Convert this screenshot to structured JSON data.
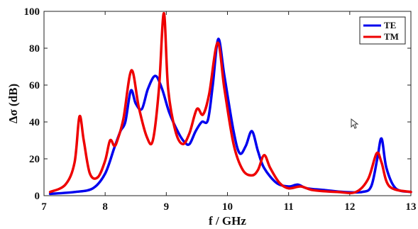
{
  "chart_data": {
    "type": "line",
    "xlabel": "f / GHz",
    "ylabel": "Δσ (dB)",
    "xlim": [
      7,
      13
    ],
    "ylim": [
      0,
      100
    ],
    "xticks": [
      "7",
      "8",
      "9",
      "10",
      "11",
      "12",
      "13"
    ],
    "yticks": [
      "0",
      "20",
      "40",
      "60",
      "80",
      "100"
    ],
    "grid": false,
    "legend_position": "top-right",
    "series": [
      {
        "name": "TE",
        "color": "#0000ee",
        "points": [
          [
            7.1,
            1
          ],
          [
            7.5,
            2
          ],
          [
            7.8,
            4
          ],
          [
            8.0,
            12
          ],
          [
            8.15,
            26
          ],
          [
            8.25,
            35
          ],
          [
            8.33,
            40
          ],
          [
            8.42,
            57
          ],
          [
            8.5,
            50
          ],
          [
            8.6,
            47
          ],
          [
            8.7,
            58
          ],
          [
            8.82,
            65
          ],
          [
            8.93,
            58
          ],
          [
            9.05,
            45
          ],
          [
            9.2,
            34
          ],
          [
            9.3,
            29
          ],
          [
            9.38,
            28
          ],
          [
            9.48,
            35
          ],
          [
            9.58,
            40
          ],
          [
            9.68,
            41
          ],
          [
            9.76,
            60
          ],
          [
            9.85,
            85
          ],
          [
            9.95,
            65
          ],
          [
            10.1,
            35
          ],
          [
            10.2,
            23
          ],
          [
            10.3,
            27
          ],
          [
            10.4,
            35
          ],
          [
            10.5,
            24
          ],
          [
            10.6,
            15
          ],
          [
            10.8,
            7
          ],
          [
            11.0,
            5
          ],
          [
            11.15,
            6
          ],
          [
            11.3,
            4
          ],
          [
            11.6,
            3
          ],
          [
            11.9,
            2
          ],
          [
            12.2,
            2
          ],
          [
            12.35,
            5
          ],
          [
            12.45,
            20
          ],
          [
            12.52,
            31
          ],
          [
            12.6,
            15
          ],
          [
            12.75,
            4
          ],
          [
            13.0,
            2
          ]
        ]
      },
      {
        "name": "TM",
        "color": "#ee0000",
        "points": [
          [
            7.1,
            2
          ],
          [
            7.35,
            6
          ],
          [
            7.5,
            18
          ],
          [
            7.58,
            43
          ],
          [
            7.65,
            30
          ],
          [
            7.75,
            12
          ],
          [
            7.88,
            10
          ],
          [
            8.0,
            19
          ],
          [
            8.08,
            30
          ],
          [
            8.15,
            27
          ],
          [
            8.2,
            30
          ],
          [
            8.3,
            42
          ],
          [
            8.43,
            68
          ],
          [
            8.55,
            48
          ],
          [
            8.68,
            32
          ],
          [
            8.78,
            30
          ],
          [
            8.88,
            58
          ],
          [
            8.96,
            99
          ],
          [
            9.03,
            58
          ],
          [
            9.15,
            35
          ],
          [
            9.27,
            28
          ],
          [
            9.38,
            34
          ],
          [
            9.5,
            47
          ],
          [
            9.6,
            44
          ],
          [
            9.7,
            55
          ],
          [
            9.84,
            83
          ],
          [
            9.95,
            58
          ],
          [
            10.1,
            28
          ],
          [
            10.25,
            14
          ],
          [
            10.4,
            11
          ],
          [
            10.5,
            14
          ],
          [
            10.6,
            22
          ],
          [
            10.7,
            15
          ],
          [
            10.85,
            7
          ],
          [
            11.0,
            4
          ],
          [
            11.2,
            5
          ],
          [
            11.4,
            3
          ],
          [
            11.8,
            2
          ],
          [
            12.1,
            2
          ],
          [
            12.3,
            9
          ],
          [
            12.44,
            23
          ],
          [
            12.52,
            18
          ],
          [
            12.65,
            5
          ],
          [
            13.0,
            2
          ]
        ]
      }
    ]
  }
}
